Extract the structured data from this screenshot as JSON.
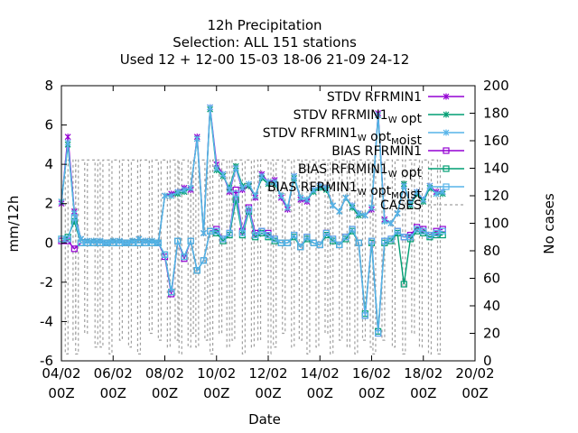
{
  "chart_data": {
    "type": "line",
    "title_lines": [
      "12h Precipitation",
      "Selection: ALL    151 stations",
      "Used  12 + 12-00 15-03 18-06 21-09 24-12"
    ],
    "xlabel": "Date",
    "ylabel": "mm/12h",
    "y2label": "No cases",
    "xlim": [
      0,
      16
    ],
    "ylim": [
      -6,
      8
    ],
    "y2lim": [
      0,
      200
    ],
    "x_ticks": [
      {
        "x": 0,
        "line1": "04/02",
        "line2": "00Z"
      },
      {
        "x": 2,
        "line1": "06/02",
        "line2": "00Z"
      },
      {
        "x": 4,
        "line1": "08/02",
        "line2": "00Z"
      },
      {
        "x": 6,
        "line1": "10/02",
        "line2": "00Z"
      },
      {
        "x": 8,
        "line1": "12/02",
        "line2": "00Z"
      },
      {
        "x": 10,
        "line1": "14/02",
        "line2": "00Z"
      },
      {
        "x": 12,
        "line1": "16/02",
        "line2": "00Z"
      },
      {
        "x": 14,
        "line1": "18/02",
        "line2": "00Z"
      },
      {
        "x": 16,
        "line1": "20/02",
        "line2": "00Z"
      }
    ],
    "y_ticks": [
      "8",
      "6",
      "4",
      "2",
      "0",
      "-2",
      "-4",
      "-6"
    ],
    "y2_ticks": [
      "200",
      "180",
      "160",
      "140",
      "120",
      "100",
      "80",
      "60",
      "40",
      "20",
      "0"
    ],
    "legend": [
      {
        "key": "stdv1",
        "pre": "STDV RFRMIN1",
        "sub": "",
        "mid": "",
        "sub2": "",
        "post": "",
        "color": "#9400d3",
        "marker": "star"
      },
      {
        "key": "stdv2",
        "pre": "STDV RFRMIN1",
        "sub": "W",
        "mid": " opt",
        "sub2": "",
        "post": "",
        "color": "#009e73",
        "marker": "star"
      },
      {
        "key": "stdv3",
        "pre": "STDV RFRMIN1",
        "sub": "W",
        "mid": " opt",
        "sub2": "M",
        "post": "oist",
        "color": "#56b4e9",
        "marker": "star"
      },
      {
        "key": "bias1",
        "pre": "BIAS RFRMIN1",
        "sub": "",
        "mid": "",
        "sub2": "",
        "post": "",
        "color": "#9400d3",
        "marker": "square"
      },
      {
        "key": "bias2",
        "pre": "BIAS RFRMIN1",
        "sub": "W",
        "mid": " opt",
        "sub2": "",
        "post": "",
        "color": "#009e73",
        "marker": "square"
      },
      {
        "key": "bias3",
        "pre": "BIAS RFRMIN1",
        "sub": "W",
        "mid": " opt",
        "sub2": "M",
        "post": "oist",
        "color": "#56b4e9",
        "marker": "square"
      },
      {
        "key": "cases",
        "pre": "CASES",
        "sub": "",
        "mid": "",
        "sub2": "",
        "post": "",
        "color": "#a0a0a0",
        "marker": "dash"
      }
    ],
    "x": [
      0,
      0.25,
      0.5,
      0.75,
      1,
      1.25,
      1.5,
      1.75,
      2,
      2.25,
      2.5,
      2.75,
      3,
      3.25,
      3.5,
      3.75,
      4,
      4.25,
      4.5,
      4.75,
      5,
      5.25,
      5.5,
      5.75,
      6,
      6.25,
      6.5,
      6.75,
      7,
      7.25,
      7.5,
      7.75,
      8,
      8.25,
      8.5,
      8.75,
      9,
      9.25,
      9.5,
      9.75,
      10,
      10.25,
      10.5,
      10.75,
      11,
      11.25,
      11.5,
      11.75,
      12,
      12.25,
      12.5,
      12.75,
      13,
      13.25,
      13.5,
      13.75,
      14,
      14.25,
      14.5,
      14.75
    ],
    "series": [
      {
        "key": "stdv1",
        "values": [
          2.0,
          5.4,
          1.6,
          0.2,
          0.1,
          0.1,
          0.1,
          0.0,
          0.1,
          0.1,
          0.0,
          0.1,
          0.2,
          0.1,
          0.1,
          0.0,
          2.4,
          2.5,
          2.6,
          2.8,
          2.7,
          5.4,
          0.5,
          6.9,
          4.0,
          3.5,
          2.6,
          3.8,
          2.7,
          2.9,
          2.3,
          3.5,
          3.1,
          3.2,
          2.3,
          1.7,
          3.4,
          2.2,
          2.1,
          2.7,
          2.9,
          2.8,
          1.9,
          1.6,
          2.3,
          1.9,
          1.5,
          1.4,
          1.7,
          6.6,
          1.2,
          1.0,
          1.5,
          2.9,
          2.0,
          2.6,
          2.2,
          2.9,
          2.6,
          2.6
        ]
      },
      {
        "key": "stdv2",
        "values": [
          2.1,
          5.0,
          1.5,
          0.2,
          0.1,
          0.1,
          0.1,
          0.0,
          0.1,
          0.1,
          0.0,
          0.1,
          0.2,
          0.1,
          0.1,
          0.0,
          2.4,
          2.4,
          2.5,
          2.6,
          2.8,
          5.3,
          0.5,
          6.8,
          3.7,
          3.4,
          2.8,
          3.9,
          2.9,
          2.9,
          2.4,
          3.3,
          3.0,
          3.0,
          2.4,
          1.8,
          3.3,
          2.3,
          2.2,
          2.6,
          2.8,
          2.7,
          1.9,
          1.6,
          2.3,
          1.8,
          1.4,
          1.4,
          1.8,
          6.5,
          1.1,
          1.0,
          1.5,
          3.0,
          1.9,
          2.5,
          2.1,
          2.8,
          2.5,
          2.5
        ]
      },
      {
        "key": "stdv3",
        "values": [
          2.1,
          5.1,
          1.5,
          0.2,
          0.1,
          0.1,
          0.1,
          0.0,
          0.1,
          0.1,
          0.0,
          0.1,
          0.2,
          0.1,
          0.1,
          0.0,
          2.4,
          2.4,
          2.6,
          2.7,
          2.8,
          5.3,
          0.5,
          6.9,
          3.8,
          3.5,
          2.7,
          3.8,
          2.8,
          3.0,
          2.4,
          3.4,
          3.1,
          3.1,
          2.4,
          1.8,
          3.4,
          2.3,
          2.2,
          2.7,
          2.9,
          2.8,
          1.9,
          1.6,
          2.3,
          1.9,
          1.5,
          1.4,
          1.8,
          6.5,
          1.1,
          1.0,
          1.5,
          2.9,
          2.0,
          2.6,
          2.2,
          2.9,
          2.5,
          2.6
        ]
      },
      {
        "key": "bias1",
        "values": [
          0.1,
          0.1,
          -0.3,
          0.0,
          0.0,
          0.0,
          0.0,
          0.0,
          0.0,
          0.0,
          0.0,
          0.0,
          0.0,
          0.0,
          0.0,
          0.0,
          -0.7,
          -2.6,
          0.1,
          -0.8,
          0.1,
          -1.4,
          -0.9,
          0.6,
          0.7,
          0.2,
          0.5,
          2.7,
          0.6,
          1.8,
          0.5,
          0.6,
          0.5,
          0.2,
          0.0,
          0.0,
          0.4,
          -0.2,
          0.3,
          0.0,
          -0.1,
          0.5,
          0.2,
          -0.1,
          0.3,
          0.7,
          0.0,
          -3.7,
          0.1,
          -4.6,
          0.1,
          0.2,
          0.6,
          0.3,
          0.4,
          0.8,
          0.7,
          0.4,
          0.6,
          0.7
        ]
      },
      {
        "key": "bias2",
        "values": [
          0.2,
          0.3,
          1.1,
          0.0,
          0.0,
          0.0,
          0.0,
          0.0,
          0.0,
          0.0,
          0.0,
          0.0,
          0.0,
          0.0,
          0.0,
          0.0,
          -0.6,
          -2.5,
          0.1,
          -0.7,
          0.1,
          -1.4,
          -0.9,
          0.6,
          0.5,
          0.1,
          0.4,
          2.2,
          0.4,
          1.6,
          0.3,
          0.5,
          0.3,
          0.1,
          0.0,
          0.0,
          0.3,
          -0.2,
          0.2,
          0.0,
          -0.1,
          0.4,
          0.1,
          -0.1,
          0.2,
          0.6,
          0.0,
          -3.6,
          0.0,
          -4.5,
          0.0,
          0.1,
          0.5,
          -2.1,
          0.2,
          0.6,
          0.5,
          0.3,
          0.4,
          0.4
        ]
      },
      {
        "key": "bias3",
        "values": [
          0.2,
          0.2,
          1.3,
          0.0,
          0.0,
          0.0,
          0.0,
          0.0,
          0.0,
          0.0,
          0.0,
          0.0,
          0.0,
          0.0,
          0.0,
          0.0,
          -0.6,
          -2.5,
          0.1,
          -0.7,
          0.1,
          -1.4,
          -0.9,
          0.6,
          0.6,
          0.2,
          0.5,
          2.5,
          0.5,
          1.7,
          0.4,
          0.6,
          0.4,
          0.2,
          0.0,
          0.0,
          0.4,
          -0.2,
          0.3,
          0.0,
          -0.1,
          0.5,
          0.2,
          -0.1,
          0.3,
          0.7,
          0.0,
          -3.7,
          0.1,
          -4.6,
          0.1,
          0.2,
          0.6,
          0.3,
          0.3,
          0.7,
          0.6,
          0.4,
          0.5,
          0.6
        ]
      }
    ],
    "cases": {
      "x": [
        0.15,
        0.45,
        0.55,
        0.9,
        1.3,
        1.5,
        1.85,
        2.25,
        2.6,
        2.95,
        3.4,
        3.75,
        4.1,
        4.4,
        4.55,
        4.9,
        5.0,
        5.2,
        5.55,
        5.75,
        6.1,
        6.4,
        6.6,
        7.0,
        7.35,
        7.6,
        8.0,
        8.2,
        8.55,
        8.9,
        9.2,
        9.5,
        9.85,
        10.2,
        10.4,
        10.75,
        11.05,
        11.35,
        11.65,
        11.95,
        12.05,
        12.4,
        12.8,
        13.2,
        13.55,
        13.85,
        14.2,
        14.55
      ],
      "y": [
        5,
        15,
        5,
        20,
        10,
        10,
        5,
        15,
        10,
        5,
        20,
        15,
        10,
        15,
        5,
        10,
        20,
        10,
        15,
        5,
        20,
        10,
        15,
        5,
        10,
        15,
        5,
        10,
        20,
        10,
        15,
        5,
        10,
        20,
        5,
        15,
        10,
        5,
        15,
        10,
        5,
        15,
        10,
        5,
        20,
        10,
        5,
        5
      ],
      "top": 146
    }
  }
}
